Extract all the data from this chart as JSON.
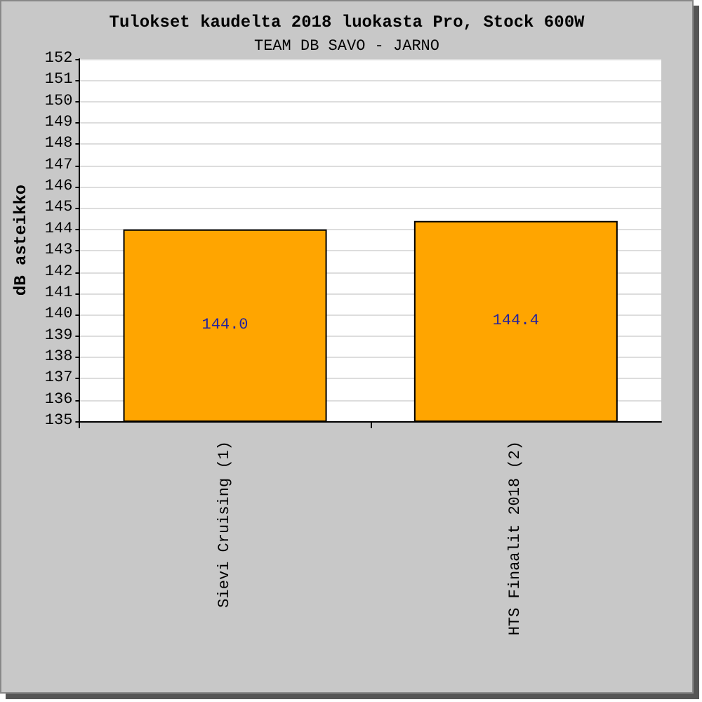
{
  "chart_data": {
    "type": "bar",
    "title": "Tulokset kaudelta 2018 luokasta Pro, Stock 600W",
    "subtitle": "TEAM DB SAVO - JARNO",
    "ylabel": "dB asteikko",
    "categories": [
      "Sievi Cruising (1)",
      "HTS Finaalit 2018 (2)"
    ],
    "values": [
      144.0,
      144.4
    ],
    "value_labels": [
      "144.0",
      "144.4"
    ],
    "color": "#ffa500",
    "ylim": [
      135,
      152
    ],
    "yticks": [
      135,
      136,
      137,
      138,
      139,
      140,
      141,
      142,
      143,
      144,
      145,
      146,
      147,
      148,
      149,
      150,
      151,
      152
    ],
    "grid": "y"
  }
}
